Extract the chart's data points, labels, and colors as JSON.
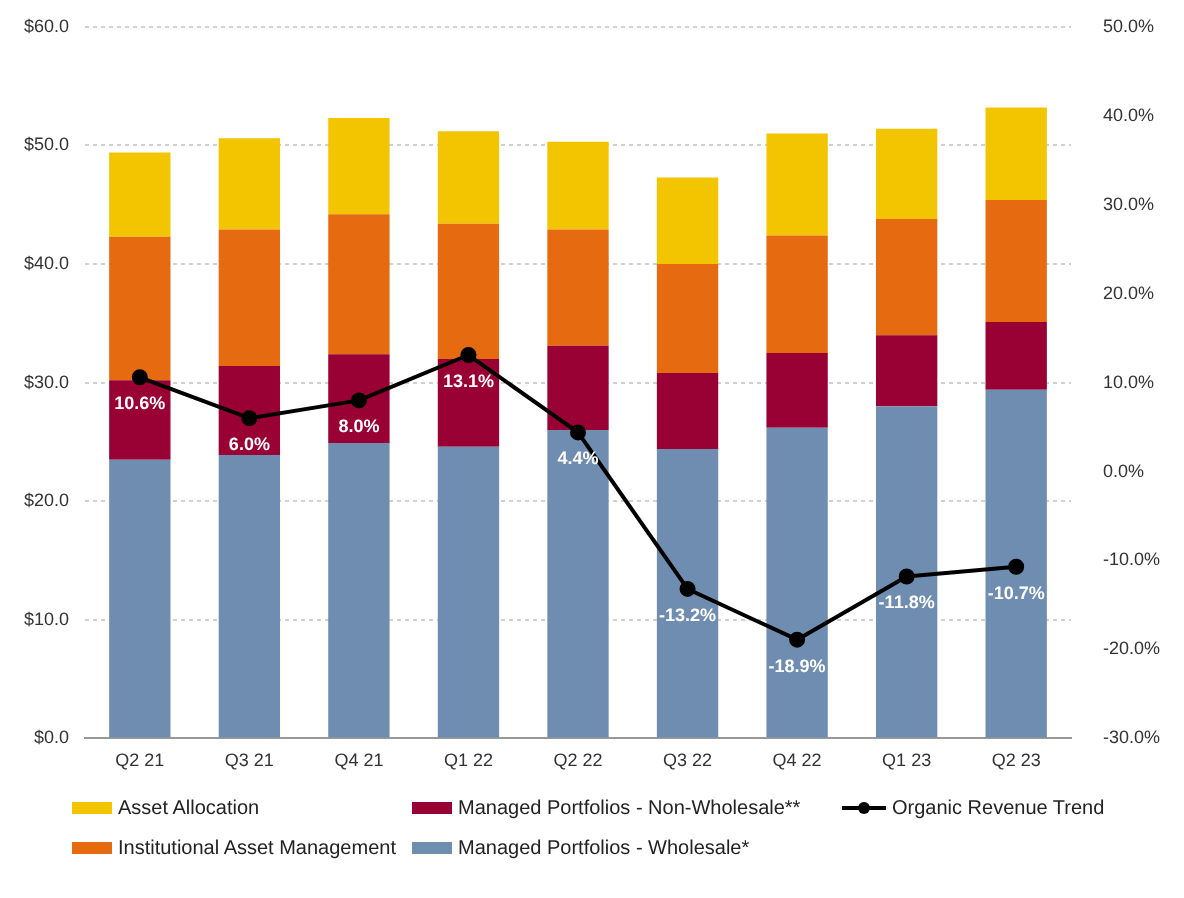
{
  "chart_data": {
    "type": "bar",
    "stacked": true,
    "categories": [
      "Q2 21",
      "Q3 21",
      "Q4 21",
      "Q1 22",
      "Q2 22",
      "Q3 22",
      "Q4 22",
      "Q1 23",
      "Q2 23"
    ],
    "series": [
      {
        "name": "Managed Portfolios - Wholesale*",
        "color": "#6f8db0",
        "values": [
          23.5,
          23.9,
          24.9,
          24.6,
          26.0,
          24.4,
          26.2,
          28.0,
          29.4
        ]
      },
      {
        "name": "Managed Portfolios - Non-Wholesale**",
        "color": "#990033",
        "values": [
          6.7,
          7.5,
          7.5,
          7.4,
          7.1,
          6.4,
          6.3,
          6.0,
          5.7
        ]
      },
      {
        "name": "Institutional Asset Management",
        "color": "#e66a10",
        "values": [
          12.1,
          11.5,
          11.8,
          11.4,
          9.8,
          9.2,
          9.9,
          9.8,
          10.3
        ]
      },
      {
        "name": "Asset Allocation",
        "color": "#f2c500",
        "values": [
          7.1,
          7.7,
          8.1,
          7.8,
          7.4,
          7.3,
          8.6,
          7.6,
          7.8
        ]
      },
      {
        "name": "Organic Revenue Trend",
        "type": "line",
        "axis": "y2",
        "color": "#000000",
        "marker": "circle",
        "values": [
          10.6,
          6.0,
          8.0,
          13.1,
          4.4,
          -13.2,
          -18.9,
          -11.8,
          -10.7
        ],
        "value_labels": [
          "10.6%",
          "6.0%",
          "8.0%",
          "13.1%",
          "4.4%",
          "-13.2%",
          "-18.9%",
          "-11.8%",
          "-10.7%"
        ]
      }
    ],
    "ylim": [
      0,
      60
    ],
    "yticks": [
      {
        "value": 0,
        "label": "$0.0"
      },
      {
        "value": 10,
        "label": "$10.0"
      },
      {
        "value": 20,
        "label": "$20.0"
      },
      {
        "value": 30,
        "label": "$30.0"
      },
      {
        "value": 40,
        "label": "$40.0"
      },
      {
        "value": 50,
        "label": "$50.0"
      },
      {
        "value": 60,
        "label": "$60.0"
      }
    ],
    "y2lim": [
      -30,
      50
    ],
    "y2ticks": [
      {
        "value": -30,
        "label": "-30.0%"
      },
      {
        "value": -20,
        "label": "-20.0%"
      },
      {
        "value": -10,
        "label": "-10.0%"
      },
      {
        "value": 0,
        "label": "0.0%"
      },
      {
        "value": 10,
        "label": "10.0%"
      },
      {
        "value": 20,
        "label": "20.0%"
      },
      {
        "value": 30,
        "label": "30.0%"
      },
      {
        "value": 40,
        "label": "40.0%"
      },
      {
        "value": 50,
        "label": "50.0%"
      }
    ],
    "grid": "y",
    "legend": "bottom"
  }
}
